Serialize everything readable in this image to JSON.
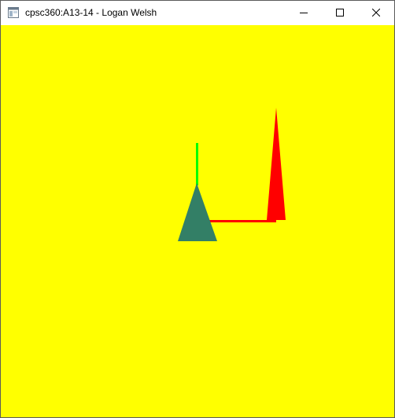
{
  "window": {
    "title": "cpsc360:A13-14 - Logan Welsh",
    "controls": {
      "minimize_icon": "minimize-icon",
      "maximize_icon": "maximize-icon",
      "close_icon": "close-icon"
    },
    "app_icon": "app-window-icon"
  },
  "scene": {
    "background_color": "#ffff00",
    "colors": {
      "green_axis": "#00ff00",
      "red_axis": "#ff0000",
      "red_cone": "#ff0000",
      "teal_triangle": "#337f66"
    }
  }
}
